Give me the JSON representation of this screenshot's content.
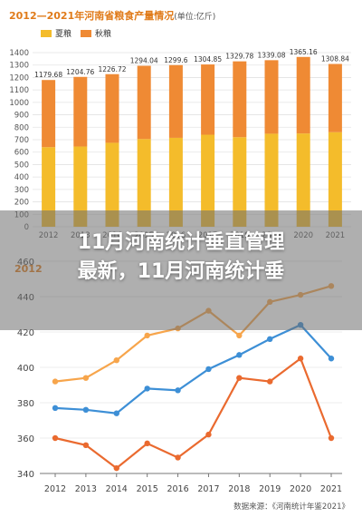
{
  "headline": {
    "line1": "11月河南统计垂直管理",
    "line2": "最新，11月河南统计垂"
  },
  "chart_data": [
    {
      "type": "bar",
      "stacked": true,
      "title": "2012—2021年河南省粮食产量情况",
      "unit_note": "(单位:亿斤)",
      "categories": [
        "2012",
        "2013",
        "2014",
        "2015",
        "2016",
        "2017",
        "2018",
        "2019",
        "2020",
        "2021"
      ],
      "series": [
        {
          "name": "夏粮",
          "values": [
            640,
            645,
            675,
            705,
            715,
            740,
            720,
            748,
            750,
            760
          ],
          "color": "#f4bc2b"
        },
        {
          "name": "秋粮",
          "values": [
            539.68,
            559.76,
            551.72,
            589.04,
            584.6,
            564.85,
            609.78,
            591.08,
            615.16,
            548.84
          ],
          "color": "#ef8a34"
        }
      ],
      "totals": [
        "1179.68",
        "1204.76",
        "1226.72",
        "1294.04",
        "1299.6",
        "1304.85",
        "1329.78",
        "1339.08",
        "1365.16",
        "1308.84"
      ],
      "ylim": [
        0,
        1400
      ],
      "yticks": [
        0,
        100,
        200,
        300,
        400,
        500,
        600,
        700,
        800,
        900,
        1000,
        1100,
        1200,
        1300,
        1400
      ],
      "grid": true,
      "legend": "top-left"
    },
    {
      "type": "line",
      "title": "2012",
      "categories": [
        "2012",
        "2013",
        "2014",
        "2015",
        "2016",
        "2017",
        "2018",
        "2019",
        "2020",
        "2021"
      ],
      "series": [
        {
          "values": [
            392,
            394,
            404,
            418,
            422,
            432,
            418,
            437,
            441,
            446
          ],
          "color": "#f7a54b"
        },
        {
          "values": [
            377,
            376,
            374,
            388,
            387,
            399,
            407,
            416,
            424,
            405
          ],
          "color": "#3d8fd6"
        },
        {
          "values": [
            360,
            356,
            343,
            357,
            349,
            362,
            394,
            392,
            405,
            360
          ],
          "color": "#ea6a2f"
        }
      ],
      "ylim": [
        340,
        460
      ],
      "yticks": [
        340,
        360,
        380,
        400,
        420,
        440,
        460
      ],
      "grid": true
    }
  ],
  "source": "数据来源：《河南统计年鉴2021》"
}
